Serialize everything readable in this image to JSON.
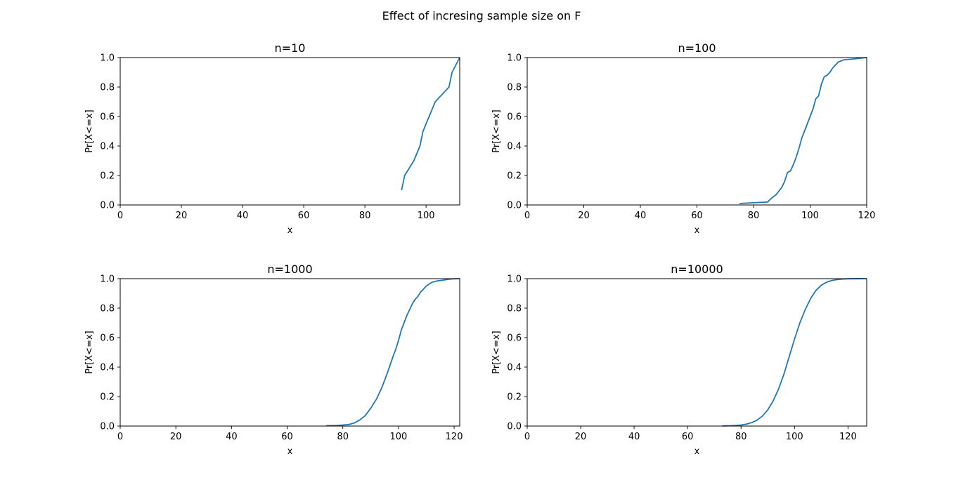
{
  "figure": {
    "suptitle": "Effect of incresing sample size on F"
  },
  "chart_data": [
    {
      "type": "line",
      "title": "n=10",
      "xlabel": "x",
      "ylabel": "Pr[X<=x]",
      "xlim": [
        0,
        111
      ],
      "ylim": [
        0,
        1
      ],
      "xticks": [
        0,
        20,
        40,
        60,
        80,
        100
      ],
      "yticks": [
        0.0,
        0.2,
        0.4,
        0.6,
        0.8,
        1.0
      ],
      "grid": false,
      "color": "#1f77b4",
      "series": [
        {
          "x": [
            92.0,
            93.0,
            96.0,
            98.0,
            99.0,
            103.0,
            107.5,
            108.5,
            111.0
          ],
          "y": [
            0.1,
            0.2,
            0.3,
            0.4,
            0.5,
            0.7,
            0.8,
            0.9,
            1.0
          ]
        }
      ]
    },
    {
      "type": "line",
      "title": "n=100",
      "xlabel": "x",
      "ylabel": "Pr[X<=x]",
      "xlim": [
        0,
        120
      ],
      "ylim": [
        0,
        1
      ],
      "xticks": [
        0,
        20,
        40,
        60,
        80,
        100,
        120
      ],
      "yticks": [
        0.0,
        0.2,
        0.4,
        0.6,
        0.8,
        1.0
      ],
      "grid": false,
      "color": "#1f77b4",
      "series": [
        {
          "x": [
            75.0,
            80.0,
            85.0,
            86.0,
            88.0,
            90.0,
            91.0,
            92.0,
            93.0,
            94.0,
            95.0,
            96.0,
            97.0,
            98.0,
            100.0,
            101.0,
            102.0,
            103.0,
            104.0,
            105.0,
            106.0,
            107.0,
            108.0,
            110.0,
            112.0,
            115.0,
            120.0
          ],
          "y": [
            0.01,
            0.015,
            0.02,
            0.04,
            0.07,
            0.12,
            0.16,
            0.22,
            0.23,
            0.27,
            0.32,
            0.38,
            0.45,
            0.5,
            0.6,
            0.65,
            0.72,
            0.74,
            0.82,
            0.87,
            0.88,
            0.9,
            0.93,
            0.97,
            0.985,
            0.99,
            1.0
          ]
        }
      ]
    },
    {
      "type": "line",
      "title": "n=1000",
      "xlabel": "x",
      "ylabel": "Pr[X<=x]",
      "xlim": [
        0,
        122
      ],
      "ylim": [
        0,
        1
      ],
      "xticks": [
        0,
        20,
        40,
        60,
        80,
        100,
        120
      ],
      "yticks": [
        0.0,
        0.2,
        0.4,
        0.6,
        0.8,
        1.0
      ],
      "grid": false,
      "color": "#1f77b4",
      "series": [
        {
          "x": [
            74.0,
            78.0,
            82.0,
            84.0,
            86.0,
            88.0,
            90.0,
            92.0,
            94.0,
            96.0,
            98.0,
            99.0,
            100.0,
            101.0,
            102.0,
            103.0,
            104.0,
            105.0,
            106.0,
            107.0,
            108.0,
            109.0,
            110.0,
            112.0,
            114.0,
            116.0,
            118.0,
            120.0,
            122.0
          ],
          "y": [
            0.002,
            0.004,
            0.01,
            0.02,
            0.04,
            0.07,
            0.12,
            0.18,
            0.26,
            0.36,
            0.47,
            0.52,
            0.58,
            0.65,
            0.7,
            0.75,
            0.79,
            0.83,
            0.86,
            0.88,
            0.91,
            0.93,
            0.95,
            0.975,
            0.985,
            0.99,
            0.996,
            0.999,
            1.0
          ]
        }
      ]
    },
    {
      "type": "line",
      "title": "n=10000",
      "xlabel": "x",
      "ylabel": "Pr[X<=x]",
      "xlim": [
        0,
        127
      ],
      "ylim": [
        0,
        1
      ],
      "xticks": [
        0,
        20,
        40,
        60,
        80,
        100,
        120
      ],
      "yticks": [
        0.0,
        0.2,
        0.4,
        0.6,
        0.8,
        1.0
      ],
      "grid": false,
      "color": "#1f77b4",
      "series": [
        {
          "x": [
            73.0,
            76.0,
            78.0,
            80.0,
            82.0,
            84.0,
            86.0,
            88.0,
            90.0,
            92.0,
            94.0,
            96.0,
            98.0,
            100.0,
            102.0,
            104.0,
            106.0,
            108.0,
            110.0,
            112.0,
            114.0,
            116.0,
            118.0,
            120.0,
            124.0,
            127.0
          ],
          "y": [
            0.001,
            0.002,
            0.004,
            0.007,
            0.013,
            0.023,
            0.04,
            0.068,
            0.11,
            0.17,
            0.25,
            0.35,
            0.47,
            0.59,
            0.7,
            0.79,
            0.865,
            0.92,
            0.955,
            0.976,
            0.988,
            0.994,
            0.997,
            0.999,
            0.9998,
            1.0
          ]
        }
      ]
    }
  ]
}
